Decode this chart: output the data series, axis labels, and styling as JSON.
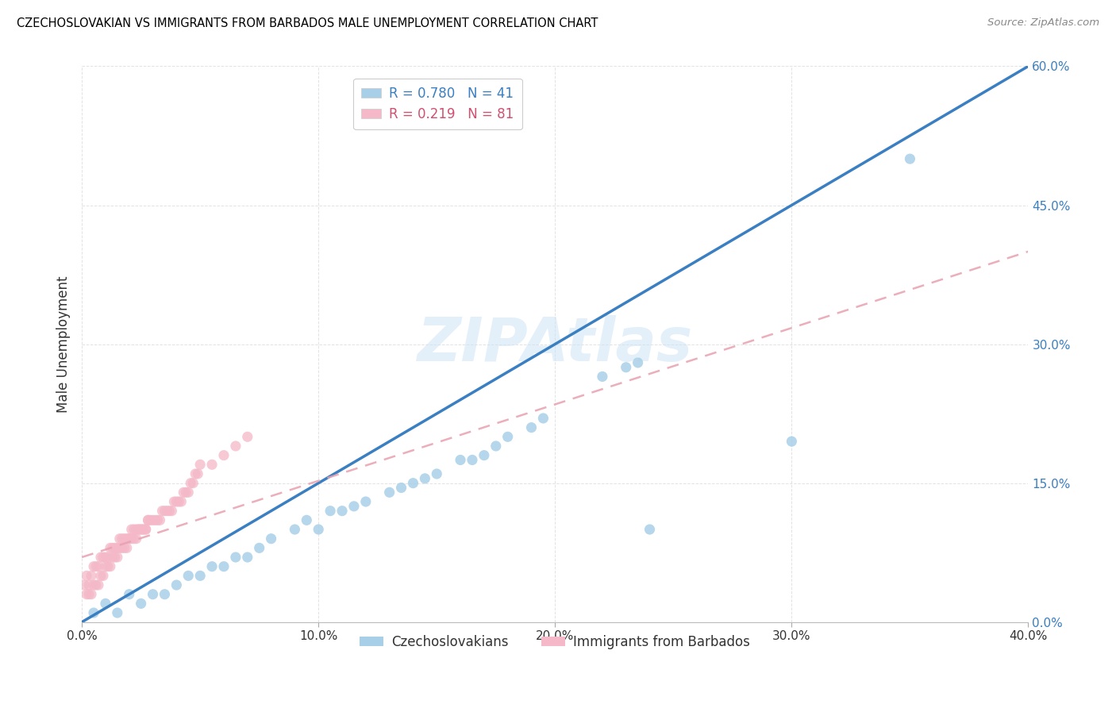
{
  "title": "CZECHOSLOVAKIAN VS IMMIGRANTS FROM BARBADOS MALE UNEMPLOYMENT CORRELATION CHART",
  "source": "Source: ZipAtlas.com",
  "ylabel": "Male Unemployment",
  "legend_blue_r": "R = 0.780",
  "legend_blue_n": "N = 41",
  "legend_pink_r": "R = 0.219",
  "legend_pink_n": "N = 81",
  "legend_label_blue": "Czechoslovakians",
  "legend_label_pink": "Immigrants from Barbados",
  "blue_color": "#a8cfe8",
  "pink_color": "#f4b8c8",
  "blue_line_color": "#3a7fc1",
  "pink_line_color": "#e8a0b0",
  "watermark": "ZIPAtlas",
  "xlim": [
    0.0,
    0.4
  ],
  "ylim": [
    0.0,
    0.6
  ],
  "blue_scatter_x": [
    0.005,
    0.01,
    0.015,
    0.02,
    0.025,
    0.03,
    0.035,
    0.04,
    0.045,
    0.05,
    0.055,
    0.06,
    0.065,
    0.07,
    0.075,
    0.08,
    0.09,
    0.095,
    0.1,
    0.105,
    0.11,
    0.115,
    0.12,
    0.13,
    0.135,
    0.14,
    0.145,
    0.15,
    0.16,
    0.165,
    0.17,
    0.175,
    0.18,
    0.19,
    0.195,
    0.22,
    0.23,
    0.235,
    0.24,
    0.3,
    0.35
  ],
  "blue_scatter_y": [
    0.01,
    0.02,
    0.01,
    0.03,
    0.02,
    0.03,
    0.03,
    0.04,
    0.05,
    0.05,
    0.06,
    0.06,
    0.07,
    0.07,
    0.08,
    0.09,
    0.1,
    0.11,
    0.1,
    0.12,
    0.12,
    0.125,
    0.13,
    0.14,
    0.145,
    0.15,
    0.155,
    0.16,
    0.175,
    0.175,
    0.18,
    0.19,
    0.2,
    0.21,
    0.22,
    0.265,
    0.275,
    0.28,
    0.1,
    0.195,
    0.5
  ],
  "pink_scatter_x": [
    0.001,
    0.002,
    0.003,
    0.004,
    0.005,
    0.006,
    0.007,
    0.008,
    0.009,
    0.01,
    0.011,
    0.012,
    0.013,
    0.014,
    0.015,
    0.016,
    0.017,
    0.018,
    0.019,
    0.02,
    0.021,
    0.022,
    0.023,
    0.024,
    0.025,
    0.026,
    0.027,
    0.028,
    0.029,
    0.03,
    0.031,
    0.032,
    0.033,
    0.034,
    0.035,
    0.036,
    0.037,
    0.038,
    0.039,
    0.04,
    0.041,
    0.042,
    0.043,
    0.044,
    0.045,
    0.046,
    0.047,
    0.048,
    0.049,
    0.05,
    0.055,
    0.06,
    0.065,
    0.07,
    0.002,
    0.003,
    0.004,
    0.005,
    0.006,
    0.007,
    0.008,
    0.009,
    0.01,
    0.011,
    0.012,
    0.013,
    0.014,
    0.015,
    0.016,
    0.017,
    0.018,
    0.019,
    0.02,
    0.021,
    0.022,
    0.023,
    0.024,
    0.025,
    0.026,
    0.027,
    0.028
  ],
  "pink_scatter_y": [
    0.04,
    0.05,
    0.04,
    0.05,
    0.06,
    0.06,
    0.06,
    0.07,
    0.07,
    0.07,
    0.07,
    0.08,
    0.08,
    0.08,
    0.08,
    0.09,
    0.09,
    0.09,
    0.09,
    0.09,
    0.1,
    0.1,
    0.1,
    0.1,
    0.1,
    0.1,
    0.1,
    0.11,
    0.11,
    0.11,
    0.11,
    0.11,
    0.11,
    0.12,
    0.12,
    0.12,
    0.12,
    0.12,
    0.13,
    0.13,
    0.13,
    0.13,
    0.14,
    0.14,
    0.14,
    0.15,
    0.15,
    0.16,
    0.16,
    0.17,
    0.17,
    0.18,
    0.19,
    0.2,
    0.03,
    0.03,
    0.03,
    0.04,
    0.04,
    0.04,
    0.05,
    0.05,
    0.06,
    0.06,
    0.06,
    0.07,
    0.07,
    0.07,
    0.08,
    0.08,
    0.08,
    0.08,
    0.09,
    0.09,
    0.09,
    0.09,
    0.1,
    0.1,
    0.1,
    0.1,
    0.11
  ]
}
